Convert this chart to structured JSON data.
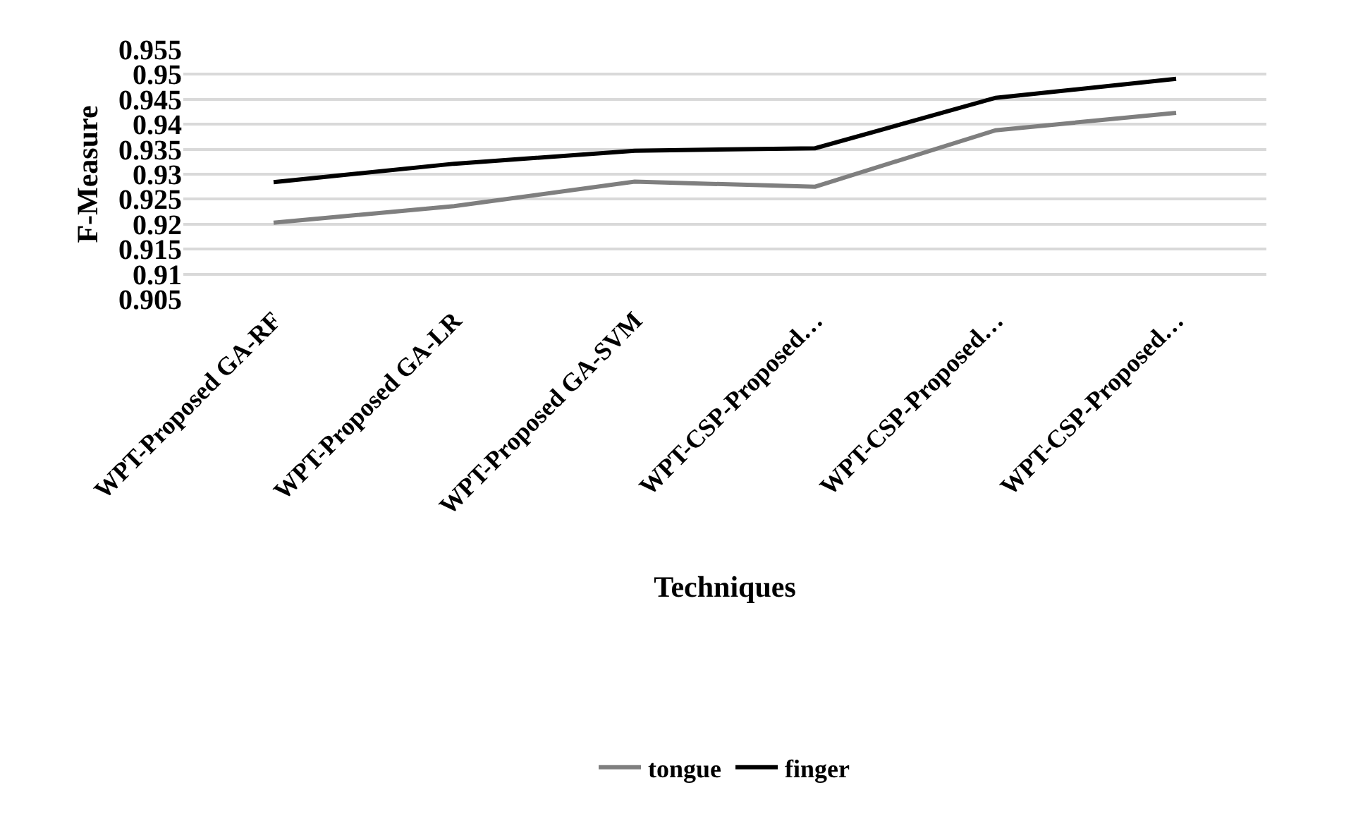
{
  "chart_data": {
    "type": "line",
    "xlabel": "Techniques",
    "ylabel": "F-Measure",
    "categories": [
      "WPT-Proposed GA-RF",
      "WPT-Proposed GA-LR",
      "WPT-Proposed GA-SVM",
      "WPT-CSP-Proposed…",
      "WPT-CSP-Proposed…",
      "WPT-CSP-Proposed…"
    ],
    "series": [
      {
        "name": "tongue",
        "color": "#7f7f7f",
        "values": [
          0.9203,
          0.9236,
          0.9285,
          0.9275,
          0.9388,
          0.9423
        ]
      },
      {
        "name": "finger",
        "color": "#000000",
        "values": [
          0.9284,
          0.9321,
          0.9347,
          0.9352,
          0.9453,
          0.9491
        ]
      }
    ],
    "ylim": [
      0.905,
      0.955
    ],
    "yticks": [
      0.905,
      0.91,
      0.915,
      0.92,
      0.925,
      0.93,
      0.935,
      0.94,
      0.945,
      0.95,
      0.955
    ],
    "grid": "y",
    "legend": "bottom",
    "marker": "none",
    "line_style": "solid"
  }
}
